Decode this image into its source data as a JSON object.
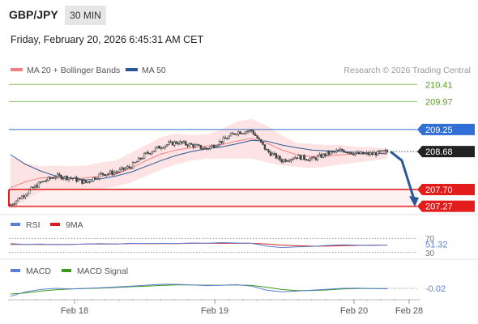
{
  "header": {
    "symbol": "GBP/JPY",
    "timeframe": "30 MIN",
    "datetime": "Friday, February 20, 2026 6:45:31 AM CET"
  },
  "legend": {
    "ma20": "MA 20 + Bollinger Bands",
    "ma50": "MA 50",
    "credit": "Research © 2026 Trading Central"
  },
  "colors": {
    "ma20": "#f08080",
    "ma50": "#2b5797",
    "band_fill": "#fde3e3",
    "candle": "#444444",
    "resistance_green": "#8cc060",
    "pivot_blue": "#2f6fd6",
    "support_red": "#e31c1c",
    "current_tag": "#222222",
    "arrow": "#2b5797",
    "rsi": "#5b7fd6",
    "rsi_ma": "#d42020",
    "macd": "#5b7fd6",
    "macd_signal": "#3c9a1c"
  },
  "levels": [
    {
      "value": 210.41,
      "label": "210.41",
      "kind": "resistance"
    },
    {
      "value": 209.97,
      "label": "209.97",
      "kind": "resistance"
    },
    {
      "value": 209.25,
      "label": "209.25",
      "kind": "pivot"
    },
    {
      "value": 207.7,
      "label": "207.70",
      "kind": "support"
    },
    {
      "value": 207.27,
      "label": "207.27",
      "kind": "support"
    }
  ],
  "current_price": {
    "value": 208.68,
    "label": "208.68"
  },
  "rsi": {
    "legend": "RSI",
    "ma_legend": "9MA",
    "value_label": "51.32",
    "upper_label": "70",
    "lower_label": "30",
    "upper": 70,
    "lower": 30
  },
  "macd": {
    "legend": "MACD",
    "signal_legend": "MACD Signal",
    "value_label": "-0.02"
  },
  "chart_data": {
    "type": "line",
    "title": "GBP/JPY 30 MIN",
    "xlabel": "",
    "ylabel": "",
    "ylim": [
      207.2,
      210.5
    ],
    "x_ticks": [
      "Feb 18",
      "Feb 19",
      "Feb 20",
      "Feb 28"
    ],
    "series": [
      {
        "name": "Price",
        "values": [
          207.31,
          207.6,
          207.88,
          208.05,
          208.0,
          207.88,
          208.1,
          208.15,
          208.3,
          208.62,
          208.82,
          208.92,
          208.85,
          208.75,
          208.95,
          209.18,
          209.22,
          208.7,
          208.45,
          208.55,
          208.48,
          208.62,
          208.72,
          208.62,
          208.62,
          208.68
        ]
      }
    ],
    "ma20": [
      207.75,
      207.9,
      208.0,
      208.02,
      207.98,
      208.0,
      208.05,
      208.1,
      208.25,
      208.45,
      208.62,
      208.72,
      208.78,
      208.82,
      208.86,
      208.95,
      209.02,
      208.9,
      208.72,
      208.6,
      208.55,
      208.57,
      208.6,
      208.62,
      208.64,
      208.65
    ],
    "ma50": [
      208.6,
      208.35,
      208.18,
      208.05,
      208.0,
      207.95,
      207.98,
      208.05,
      208.15,
      208.3,
      208.45,
      208.58,
      208.68,
      208.75,
      208.8,
      208.88,
      208.97,
      208.95,
      208.85,
      208.78,
      208.72,
      208.7,
      208.68,
      208.66,
      208.64,
      208.62
    ],
    "bb_upper": [
      208.55,
      208.38,
      208.3,
      208.32,
      208.3,
      208.32,
      208.4,
      208.45,
      208.65,
      208.85,
      209.05,
      209.15,
      209.1,
      209.12,
      209.25,
      209.45,
      209.52,
      209.35,
      209.1,
      208.9,
      208.88,
      208.85,
      208.85,
      208.8,
      208.8,
      208.75
    ],
    "bb_lower": [
      207.2,
      207.42,
      207.65,
      207.7,
      207.68,
      207.7,
      207.72,
      207.78,
      207.88,
      208.05,
      208.22,
      208.35,
      208.45,
      208.5,
      208.5,
      208.5,
      208.5,
      208.4,
      208.32,
      208.28,
      208.25,
      208.3,
      208.35,
      208.4,
      208.45,
      208.5
    ],
    "rsi_series": [
      55,
      53,
      54,
      52,
      53,
      54,
      55,
      54,
      56,
      55,
      56,
      55,
      57,
      56,
      58,
      57,
      56,
      48,
      44,
      46,
      47,
      50,
      52,
      51,
      50,
      51.32
    ],
    "rsi_ma_series": [
      53,
      53,
      53,
      53,
      53,
      54,
      54,
      54,
      55,
      55,
      55,
      55,
      56,
      56,
      56,
      56,
      56,
      54,
      51,
      49,
      48,
      48,
      49,
      50,
      51,
      51
    ],
    "macd_series": [
      -0.35,
      -0.15,
      -0.05,
      0.0,
      -0.02,
      0.0,
      0.03,
      0.06,
      0.1,
      0.14,
      0.18,
      0.18,
      0.15,
      0.12,
      0.14,
      0.16,
      0.1,
      -0.08,
      -0.15,
      -0.12,
      -0.08,
      -0.04,
      0.0,
      0.01,
      -0.01,
      -0.02
    ],
    "macd_signal_series": [
      -0.25,
      -0.2,
      -0.12,
      -0.06,
      -0.03,
      -0.01,
      0.01,
      0.04,
      0.07,
      0.1,
      0.13,
      0.15,
      0.15,
      0.14,
      0.14,
      0.15,
      0.13,
      0.05,
      -0.05,
      -0.1,
      -0.1,
      -0.07,
      -0.03,
      -0.01,
      -0.01,
      -0.01
    ],
    "grid": false,
    "legend_position": "top-left"
  }
}
